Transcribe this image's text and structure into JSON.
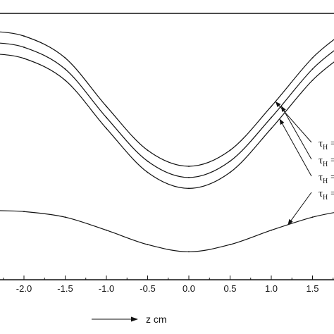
{
  "chart_data": {
    "type": "line",
    "title": "",
    "xlabel": "z cm",
    "ylabel": "",
    "xlim": [
      -2.45,
      1.9
    ],
    "ylim": [
      0,
      1
    ],
    "grid": false,
    "x_ticks": [
      -2.0,
      -1.5,
      -1.0,
      -0.5,
      0.0,
      0.5,
      1.0,
      1.5
    ],
    "x_tick_labels": [
      "-2.0",
      "-1.5",
      "-1.0",
      "-0.5",
      "0.0",
      "0.5",
      "1.0",
      "1.5"
    ],
    "series": [
      {
        "name": "",
        "x": [
          -2.45,
          -2.0,
          -1.5,
          -1.0,
          -0.5,
          0.0,
          0.5,
          1.0,
          1.5,
          1.9
        ],
        "y": [
          0.934,
          0.915,
          0.833,
          0.651,
          0.486,
          0.426,
          0.486,
          0.651,
          0.833,
          0.934
        ]
      },
      {
        "name": "",
        "x": [
          -2.45,
          -2.0,
          -1.5,
          -1.0,
          -0.5,
          0.0,
          0.5,
          1.0,
          1.5,
          1.9
        ],
        "y": [
          0.892,
          0.873,
          0.791,
          0.609,
          0.445,
          0.384,
          0.445,
          0.609,
          0.791,
          0.892
        ]
      },
      {
        "name": "",
        "x": [
          -2.45,
          -2.0,
          -1.5,
          -1.0,
          -0.5,
          0.0,
          0.5,
          1.0,
          1.5,
          1.9
        ],
        "y": [
          0.85,
          0.831,
          0.749,
          0.568,
          0.403,
          0.343,
          0.403,
          0.568,
          0.749,
          0.85
        ]
      },
      {
        "name": "",
        "x": [
          -2.45,
          -2.0,
          -1.5,
          -1.0,
          -0.5,
          0.0,
          0.5,
          1.0,
          1.5,
          1.9
        ],
        "y": [
          0.26,
          0.256,
          0.235,
          0.186,
          0.132,
          0.105,
          0.132,
          0.186,
          0.235,
          0.26
        ]
      }
    ],
    "annotations": [
      {
        "text": "τ",
        "sub": "H",
        "suffix": " =",
        "target_series": 0,
        "target_x": 1.05
      },
      {
        "text": "τ",
        "sub": "H",
        "suffix": " =",
        "target_series": 1,
        "target_x": 1.12
      },
      {
        "text": "τ",
        "sub": "H",
        "suffix": " =",
        "target_series": 2,
        "target_x": 1.1
      },
      {
        "text": "τ",
        "sub": "H",
        "suffix": " =",
        "target_series": 3,
        "target_x": 1.2
      }
    ],
    "colors": {
      "line": "#111111",
      "axis": "#111111",
      "background": "#ffffff"
    }
  }
}
